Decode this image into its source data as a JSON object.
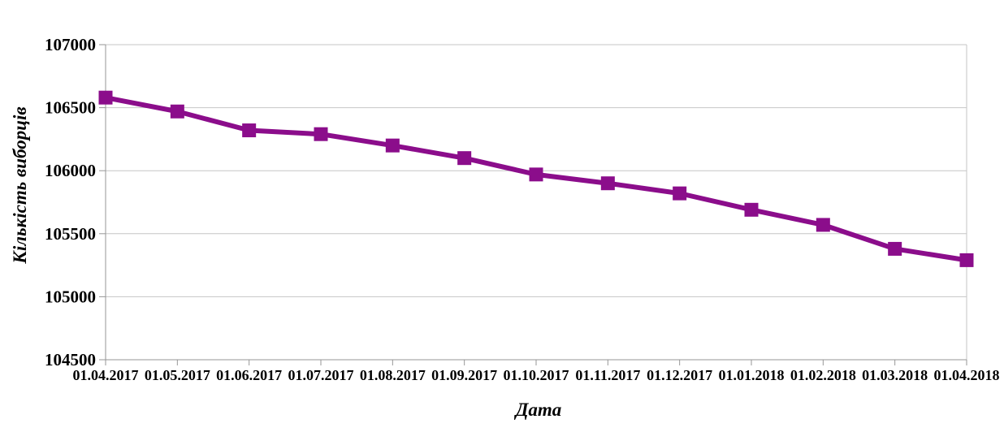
{
  "chart_data": {
    "type": "line",
    "title": "",
    "xlabel": "Дата",
    "ylabel": "Кількість виборців",
    "categories": [
      "01.04.2017",
      "01.05.2017",
      "01.06.2017",
      "01.07.2017",
      "01.08.2017",
      "01.09.2017",
      "01.10.2017",
      "01.11.2017",
      "01.12.2017",
      "01.01.2018",
      "01.02.2018",
      "01.03.2018",
      "01.04.2018"
    ],
    "series": [
      {
        "name": "Кількість виборців",
        "values": [
          106580,
          106470,
          106320,
          106290,
          106200,
          106100,
          105970,
          105900,
          105820,
          105690,
          105570,
          105380,
          105290
        ]
      }
    ],
    "ylim": [
      104500,
      107000
    ],
    "yticks": [
      104500,
      105000,
      105500,
      106000,
      106500,
      107000
    ],
    "ytick_step": 500,
    "legend": "none",
    "grid": "horizontal-only",
    "marker_shape": "square",
    "colors": {
      "line": "#8B0D8B",
      "marker": "#8B0D8B",
      "gridline": "#C6C6C6",
      "axis": "#969696",
      "text": "#000000",
      "background": "#FFFFFF"
    }
  }
}
